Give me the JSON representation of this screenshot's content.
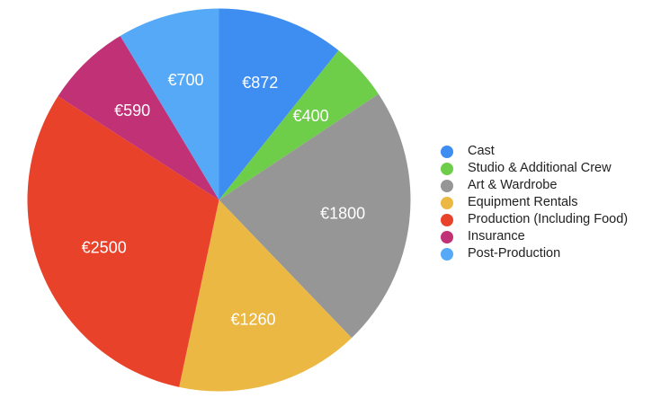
{
  "chart_data": {
    "type": "pie",
    "title": "",
    "categories": [
      "Cast",
      "Studio & Additional Crew",
      "Art & Wardrobe",
      "Equipment Rentals",
      "Production (Including Food)",
      "Insurance",
      "Post-Production"
    ],
    "values": [
      872,
      400,
      1800,
      1260,
      2500,
      590,
      700
    ],
    "value_labels": [
      "€872",
      "€400",
      "€1800",
      "€1260",
      "€2500",
      "€590",
      "€700"
    ],
    "colors": [
      "#3E8DF1",
      "#6FCE49",
      "#969696",
      "#EBB844",
      "#E9422A",
      "#C03175",
      "#56A9F6"
    ],
    "total": 8122,
    "currency": "EUR",
    "start_angle_deg": 0,
    "direction": "clockwise",
    "legend_position": "right",
    "slice_label_color": "#FFFFFF"
  },
  "legend": {
    "text_color": "#212121"
  }
}
